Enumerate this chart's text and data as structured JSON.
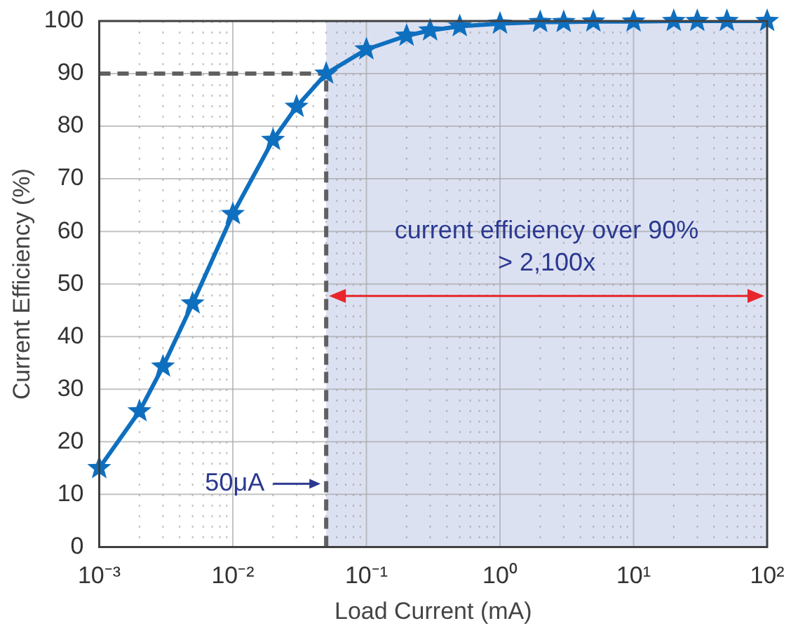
{
  "chart_data": {
    "type": "line",
    "xlabel": "Load Current (mA)",
    "ylabel": "Current Efficiency (%)",
    "x": [
      0.001,
      0.002,
      0.003,
      0.005,
      0.01,
      0.02,
      0.03,
      0.05,
      0.1,
      0.2,
      0.3,
      0.5,
      1,
      2,
      3,
      5,
      10,
      20,
      30,
      50,
      100
    ],
    "series": [
      {
        "color": "#0f6fbf",
        "values": [
          15,
          25.8,
          34.3,
          46.3,
          63.3,
          77.4,
          83.7,
          90,
          94.6,
          97.2,
          98.2,
          99,
          99.5,
          99.8,
          99.8,
          99.9,
          99.9,
          100,
          100,
          100,
          100
        ]
      }
    ],
    "log": "x",
    "xlim": [
      0.001,
      100
    ],
    "ylim": [
      0,
      100
    ],
    "xticks": [
      {
        "value": 0.001,
        "label": "10⁻³"
      },
      {
        "value": 0.01,
        "label": "10⁻²"
      },
      {
        "value": 0.1,
        "label": "10⁻¹"
      },
      {
        "value": 1,
        "label": "10⁰"
      },
      {
        "value": 10,
        "label": "10¹"
      },
      {
        "value": 100,
        "label": "10²"
      }
    ],
    "yticks": [
      0,
      10,
      20,
      30,
      40,
      50,
      60,
      70,
      80,
      90,
      100
    ],
    "grid": true,
    "legend": false,
    "marker": "star",
    "line_style": "solid",
    "ref_lines": [
      {
        "axis": "y",
        "value": 90,
        "color": "#606060",
        "line_style": "dashed"
      },
      {
        "axis": "x",
        "value": 0.05,
        "color": "#606060",
        "line_style": "dashed"
      }
    ],
    "bands": [
      {
        "axis": "x",
        "from": 0.05,
        "to": 100,
        "color": "#dce1f2"
      }
    ],
    "annotations": [
      "current efficiency over 90%",
      "> 2,100x",
      {
        "text": "50μA",
        "x": 0.05,
        "y": 12
      }
    ]
  }
}
